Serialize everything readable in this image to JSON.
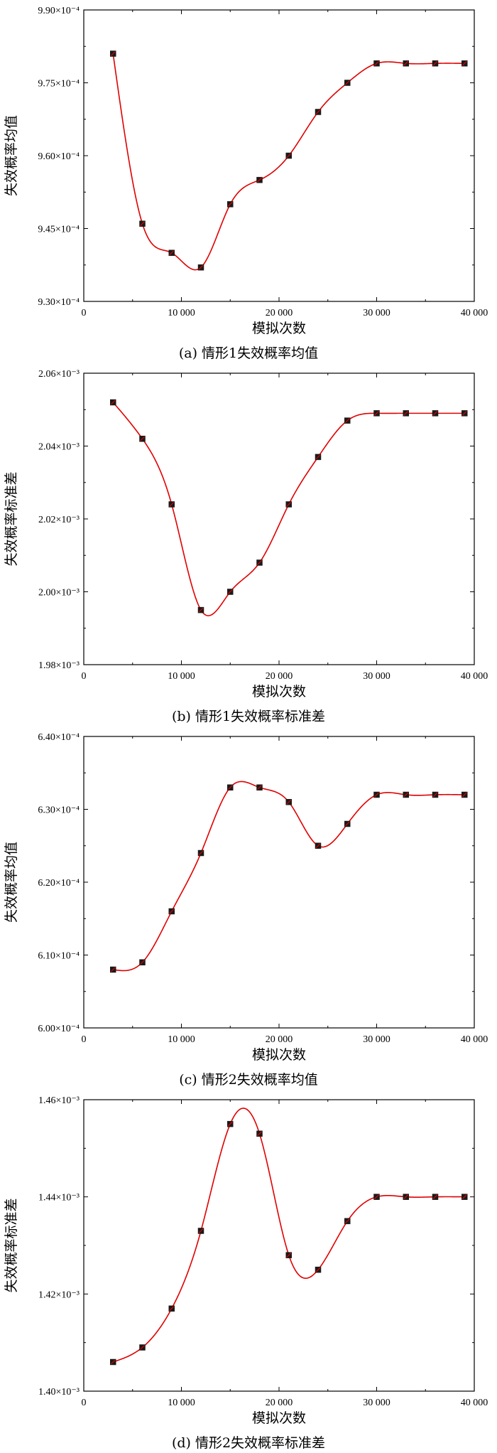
{
  "colors": {
    "line": "#e00000",
    "marker": "#1a1a1a",
    "axis": "#000000"
  },
  "chart_data": [
    {
      "type": "line",
      "caption": "(a) 情形1失效概率均值",
      "xlabel": "模拟次数",
      "ylabel": "失效概率均值",
      "xlim": [
        0,
        40000
      ],
      "ylim": [
        9.3,
        9.9
      ],
      "x_ticks": [
        0,
        10000,
        20000,
        30000,
        40000
      ],
      "x_tick_labels": [
        "0",
        "10 000",
        "20 000",
        "30 000",
        "40 000"
      ],
      "y_ticks": [
        9.3,
        9.45,
        9.6,
        9.75,
        9.9
      ],
      "y_tick_labels": [
        "9.30×10⁻⁴",
        "9.45×10⁻⁴",
        "9.60×10⁻⁴",
        "9.75×10⁻⁴",
        "9.90×10⁻⁴"
      ],
      "y_unit_exponent": -4,
      "grid": false,
      "series": [
        {
          "x": [
            3000,
            6000,
            9000,
            12000,
            15000,
            18000,
            21000,
            24000,
            27000,
            30000,
            33000,
            36000,
            39000
          ],
          "y": [
            9.81,
            9.46,
            9.4,
            9.37,
            9.5,
            9.55,
            9.6,
            9.69,
            9.75,
            9.79,
            9.79,
            9.79,
            9.79
          ]
        }
      ]
    },
    {
      "type": "line",
      "caption": "(b) 情形1失效概率标准差",
      "xlabel": "模拟次数",
      "ylabel": "失效概率标准差",
      "xlim": [
        0,
        40000
      ],
      "ylim": [
        1.98,
        2.06
      ],
      "x_ticks": [
        0,
        10000,
        20000,
        30000,
        40000
      ],
      "x_tick_labels": [
        "0",
        "10 000",
        "20 000",
        "30 000",
        "40 000"
      ],
      "y_ticks": [
        1.98,
        2.0,
        2.02,
        2.04,
        2.06
      ],
      "y_tick_labels": [
        "1.98×10⁻³",
        "2.00×10⁻³",
        "2.02×10⁻³",
        "2.04×10⁻³",
        "2.06×10⁻³"
      ],
      "y_unit_exponent": -3,
      "grid": false,
      "series": [
        {
          "x": [
            3000,
            6000,
            9000,
            12000,
            15000,
            18000,
            21000,
            24000,
            27000,
            30000,
            33000,
            36000,
            39000
          ],
          "y": [
            2.052,
            2.042,
            2.024,
            1.995,
            2.0,
            2.008,
            2.024,
            2.037,
            2.047,
            2.049,
            2.049,
            2.049,
            2.049
          ]
        }
      ]
    },
    {
      "type": "line",
      "caption": "(c) 情形2失效概率均值",
      "xlabel": "模拟次数",
      "ylabel": "失效概率均值",
      "xlim": [
        0,
        40000
      ],
      "ylim": [
        6.0,
        6.4
      ],
      "x_ticks": [
        0,
        10000,
        20000,
        30000,
        40000
      ],
      "x_tick_labels": [
        "0",
        "10 000",
        "20 000",
        "30 000",
        "40 000"
      ],
      "y_ticks": [
        6.0,
        6.1,
        6.2,
        6.3,
        6.4
      ],
      "y_tick_labels": [
        "6.00×10⁻⁴",
        "6.10×10⁻⁴",
        "6.20×10⁻⁴",
        "6.30×10⁻⁴",
        "6.40×10⁻⁴"
      ],
      "y_unit_exponent": -4,
      "grid": false,
      "series": [
        {
          "x": [
            3000,
            6000,
            9000,
            12000,
            15000,
            18000,
            21000,
            24000,
            27000,
            30000,
            33000,
            36000,
            39000
          ],
          "y": [
            6.08,
            6.09,
            6.16,
            6.24,
            6.33,
            6.33,
            6.31,
            6.25,
            6.28,
            6.32,
            6.32,
            6.32,
            6.32
          ]
        }
      ]
    },
    {
      "type": "line",
      "caption": "(d) 情形2失效概率标准差",
      "xlabel": "模拟次数",
      "ylabel": "失效概率标准差",
      "xlim": [
        0,
        40000
      ],
      "ylim": [
        1.4,
        1.46
      ],
      "x_ticks": [
        0,
        10000,
        20000,
        30000,
        40000
      ],
      "x_tick_labels": [
        "0",
        "10 000",
        "20 000",
        "30 000",
        "40 000"
      ],
      "y_ticks": [
        1.4,
        1.42,
        1.44,
        1.46
      ],
      "y_tick_labels": [
        "1.40×10⁻³",
        "1.42×10⁻³",
        "1.44×10⁻³",
        "1.46×10⁻³"
      ],
      "y_unit_exponent": -3,
      "grid": false,
      "series": [
        {
          "x": [
            3000,
            6000,
            9000,
            12000,
            15000,
            18000,
            21000,
            24000,
            27000,
            30000,
            33000,
            36000,
            39000
          ],
          "y": [
            1.406,
            1.409,
            1.417,
            1.433,
            1.455,
            1.453,
            1.428,
            1.425,
            1.435,
            1.44,
            1.44,
            1.44,
            1.44
          ]
        }
      ]
    }
  ]
}
